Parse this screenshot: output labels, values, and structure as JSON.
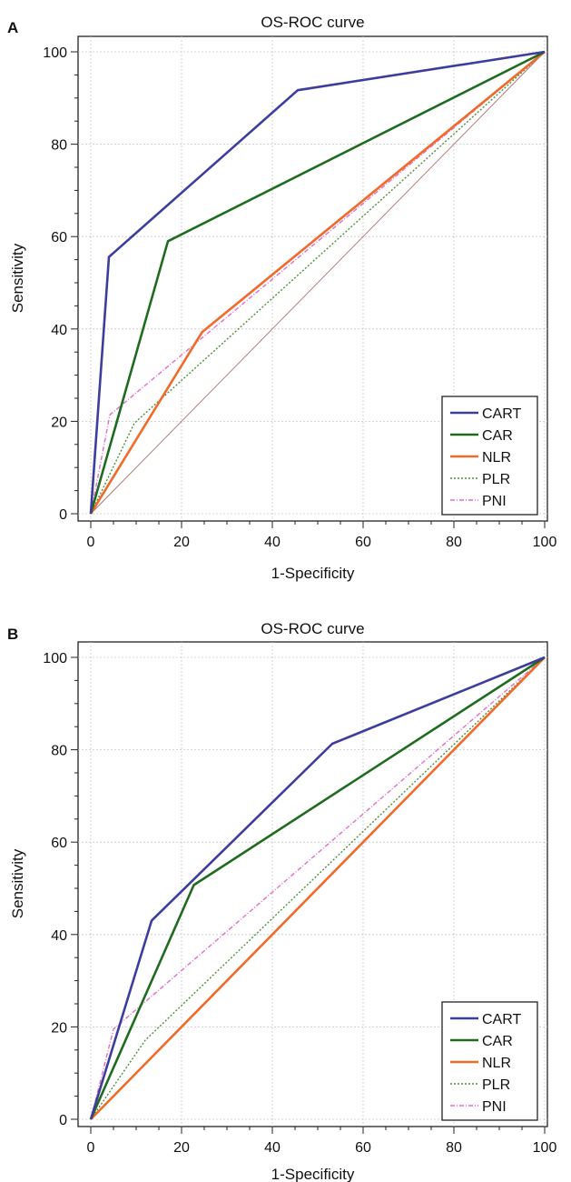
{
  "colors": {
    "CART": "#3d3d9e",
    "CAR": "#1f6b1f",
    "NLR": "#f26a2a",
    "PLR": "#4f8f3f",
    "PNI": "#e36ec8",
    "reference": "#b07070",
    "grid": "#c8c8c8",
    "axis": "#222222"
  },
  "chart_data": [
    {
      "type": "line",
      "panel": "A",
      "title": "OS-ROC curve",
      "xlabel": "1-Specificity",
      "ylabel": "Sensitivity",
      "xlim": [
        0,
        100
      ],
      "ylim": [
        0,
        100
      ],
      "xticks": [
        0,
        20,
        40,
        60,
        80,
        100
      ],
      "yticks": [
        0,
        20,
        40,
        60,
        80,
        100
      ],
      "grid": true,
      "legend_position": "bottom-right",
      "reference_line": [
        [
          0,
          0
        ],
        [
          100,
          100
        ]
      ],
      "series": [
        {
          "name": "CART",
          "style": "solid",
          "points": [
            [
              0,
              0
            ],
            [
              4,
              55.6
            ],
            [
              45.6,
              91.7
            ],
            [
              100,
              100
            ]
          ]
        },
        {
          "name": "CAR",
          "style": "solid",
          "points": [
            [
              0,
              0
            ],
            [
              17,
              59
            ],
            [
              100,
              100
            ]
          ]
        },
        {
          "name": "NLR",
          "style": "solid",
          "points": [
            [
              0,
              0
            ],
            [
              24.5,
              39.3
            ],
            [
              100,
              100
            ]
          ]
        },
        {
          "name": "PLR",
          "style": "dotted",
          "points": [
            [
              0,
              0
            ],
            [
              9.6,
              19.6
            ],
            [
              100,
              100
            ]
          ]
        },
        {
          "name": "PNI",
          "style": "dashdot",
          "points": [
            [
              0,
              0
            ],
            [
              4.2,
              21.4
            ],
            [
              100,
              100
            ]
          ]
        }
      ]
    },
    {
      "type": "line",
      "panel": "B",
      "title": "OS-ROC curve",
      "xlabel": "1-Specificity",
      "ylabel": "Sensitivity",
      "xlim": [
        0,
        100
      ],
      "ylim": [
        0,
        100
      ],
      "xticks": [
        0,
        20,
        40,
        60,
        80,
        100
      ],
      "yticks": [
        0,
        20,
        40,
        60,
        80,
        100
      ],
      "grid": true,
      "legend_position": "bottom-right",
      "reference_line": [
        [
          0,
          0
        ],
        [
          100,
          100
        ]
      ],
      "series": [
        {
          "name": "CART",
          "style": "solid",
          "points": [
            [
              0,
              0
            ],
            [
              13.4,
              43
            ],
            [
              53.2,
              81.3
            ],
            [
              100,
              100
            ]
          ]
        },
        {
          "name": "CAR",
          "style": "solid",
          "points": [
            [
              0,
              0
            ],
            [
              22.7,
              50.7
            ],
            [
              100,
              100
            ]
          ]
        },
        {
          "name": "NLR",
          "style": "solid",
          "points": [
            [
              0,
              0
            ],
            [
              100,
              100
            ]
          ]
        },
        {
          "name": "PLR",
          "style": "dotted",
          "points": [
            [
              0,
              0
            ],
            [
              12,
              17.1
            ],
            [
              100,
              100
            ]
          ]
        },
        {
          "name": "PNI",
          "style": "dashdot",
          "points": [
            [
              0,
              0
            ],
            [
              5,
              19.5
            ],
            [
              100,
              100
            ]
          ]
        }
      ]
    }
  ]
}
